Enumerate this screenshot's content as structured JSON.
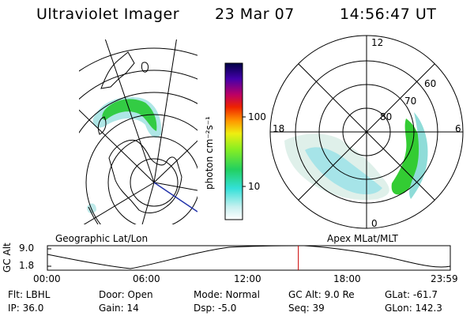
{
  "header": {
    "instrument": "Ultraviolet Imager",
    "date": "23 Mar 07",
    "time": "14:56:47 UT"
  },
  "colorbar": {
    "unit": "photon cm⁻²s⁻¹",
    "ticks": [
      "100",
      "10"
    ]
  },
  "polar_plot": {
    "labels": [
      "12",
      "60",
      "70",
      "80",
      "18",
      "6",
      "0"
    ]
  },
  "panel_labels": {
    "left": "Geographic Lat/Lon",
    "right": "Apex MLat/MLT"
  },
  "timeline": {
    "ylabel": "GC Alt",
    "y_ticks": [
      "9.0",
      "1.8"
    ],
    "x_ticks": [
      "00:00",
      "06:00",
      "12:00",
      "18:00",
      "23:59"
    ],
    "current_time_fraction": 0.6228
  },
  "info": {
    "flt": "Flt: LBHL",
    "door": "Door: Open",
    "mode": "Mode: Normal",
    "gc_alt": "GC Alt: 9.0 Re",
    "glat": "GLat: -61.7",
    "ip": "IP: 36.0",
    "gain": "Gain: 14",
    "dsp": "Dsp:   -5.0",
    "seq": "Seq: 39",
    "glon": "GLon: 142.3"
  },
  "colors": {
    "accent_marker": "#cc0000",
    "aurora_bright": "#22cc22",
    "aurora_mid": "#55dd55",
    "aurora_faint": "#88dddd"
  }
}
